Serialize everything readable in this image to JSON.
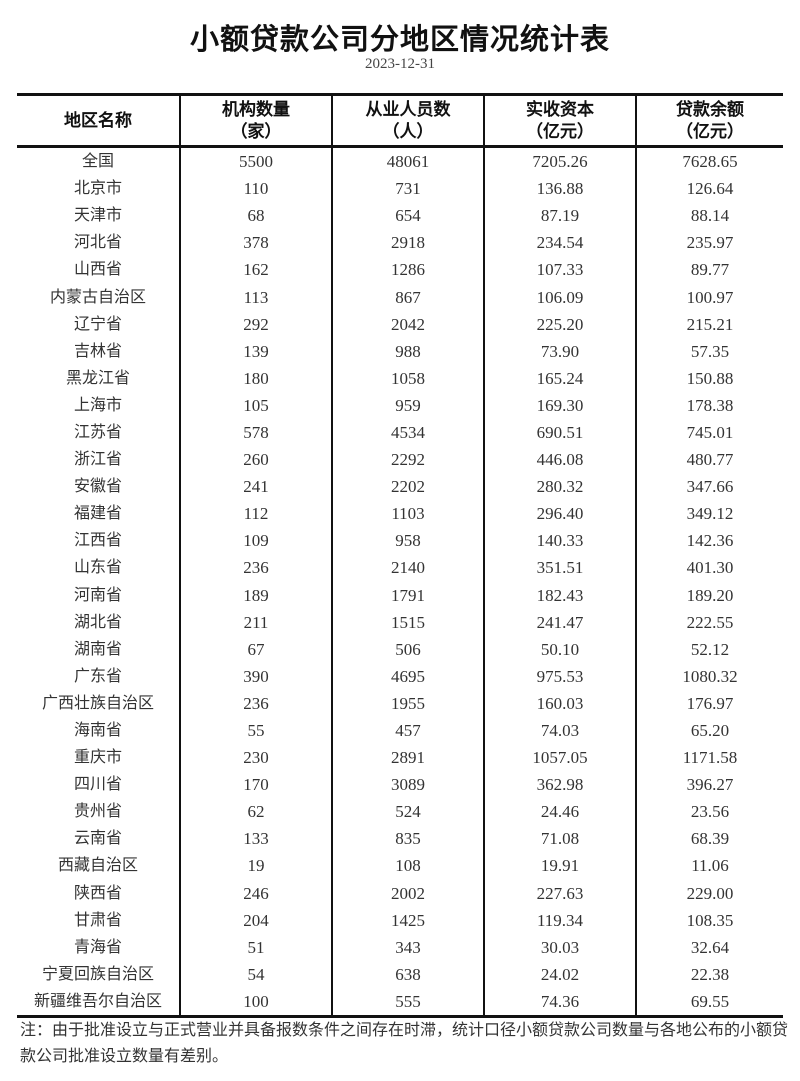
{
  "title": "小额贷款公司分地区情况统计表",
  "date": "2023-12-31",
  "table": {
    "headers": [
      {
        "line1": "地区名称",
        "line2": ""
      },
      {
        "line1": "机构数量",
        "line2": "（家）"
      },
      {
        "line1": "从业人员数",
        "line2": "（人）"
      },
      {
        "line1": "实收资本",
        "line2": "（亿元）"
      },
      {
        "line1": "贷款余额",
        "line2": "（亿元）"
      }
    ],
    "rows": [
      [
        "全国",
        "5500",
        "48061",
        "7205.26",
        "7628.65"
      ],
      [
        "北京市",
        "110",
        "731",
        "136.88",
        "126.64"
      ],
      [
        "天津市",
        "68",
        "654",
        "87.19",
        "88.14"
      ],
      [
        "河北省",
        "378",
        "2918",
        "234.54",
        "235.97"
      ],
      [
        "山西省",
        "162",
        "1286",
        "107.33",
        "89.77"
      ],
      [
        "内蒙古自治区",
        "113",
        "867",
        "106.09",
        "100.97"
      ],
      [
        "辽宁省",
        "292",
        "2042",
        "225.20",
        "215.21"
      ],
      [
        "吉林省",
        "139",
        "988",
        "73.90",
        "57.35"
      ],
      [
        "黑龙江省",
        "180",
        "1058",
        "165.24",
        "150.88"
      ],
      [
        "上海市",
        "105",
        "959",
        "169.30",
        "178.38"
      ],
      [
        "江苏省",
        "578",
        "4534",
        "690.51",
        "745.01"
      ],
      [
        "浙江省",
        "260",
        "2292",
        "446.08",
        "480.77"
      ],
      [
        "安徽省",
        "241",
        "2202",
        "280.32",
        "347.66"
      ],
      [
        "福建省",
        "112",
        "1103",
        "296.40",
        "349.12"
      ],
      [
        "江西省",
        "109",
        "958",
        "140.33",
        "142.36"
      ],
      [
        "山东省",
        "236",
        "2140",
        "351.51",
        "401.30"
      ],
      [
        "河南省",
        "189",
        "1791",
        "182.43",
        "189.20"
      ],
      [
        "湖北省",
        "211",
        "1515",
        "241.47",
        "222.55"
      ],
      [
        "湖南省",
        "67",
        "506",
        "50.10",
        "52.12"
      ],
      [
        "广东省",
        "390",
        "4695",
        "975.53",
        "1080.32"
      ],
      [
        "广西壮族自治区",
        "236",
        "1955",
        "160.03",
        "176.97"
      ],
      [
        "海南省",
        "55",
        "457",
        "74.03",
        "65.20"
      ],
      [
        "重庆市",
        "230",
        "2891",
        "1057.05",
        "1171.58"
      ],
      [
        "四川省",
        "170",
        "3089",
        "362.98",
        "396.27"
      ],
      [
        "贵州省",
        "62",
        "524",
        "24.46",
        "23.56"
      ],
      [
        "云南省",
        "133",
        "835",
        "71.08",
        "68.39"
      ],
      [
        "西藏自治区",
        "19",
        "108",
        "19.91",
        "11.06"
      ],
      [
        "陕西省",
        "246",
        "2002",
        "227.63",
        "229.00"
      ],
      [
        "甘肃省",
        "204",
        "1425",
        "119.34",
        "108.35"
      ],
      [
        "青海省",
        "51",
        "343",
        "30.03",
        "32.64"
      ],
      [
        "宁夏回族自治区",
        "54",
        "638",
        "24.02",
        "22.38"
      ],
      [
        "新疆维吾尔自治区",
        "100",
        "555",
        "74.36",
        "69.55"
      ]
    ]
  },
  "note": "注：由于批准设立与正式营业并具备报数条件之间存在时滞，统计口径小额贷款公司数量与各地公布的小额贷款公司批准设立数量有差别。"
}
